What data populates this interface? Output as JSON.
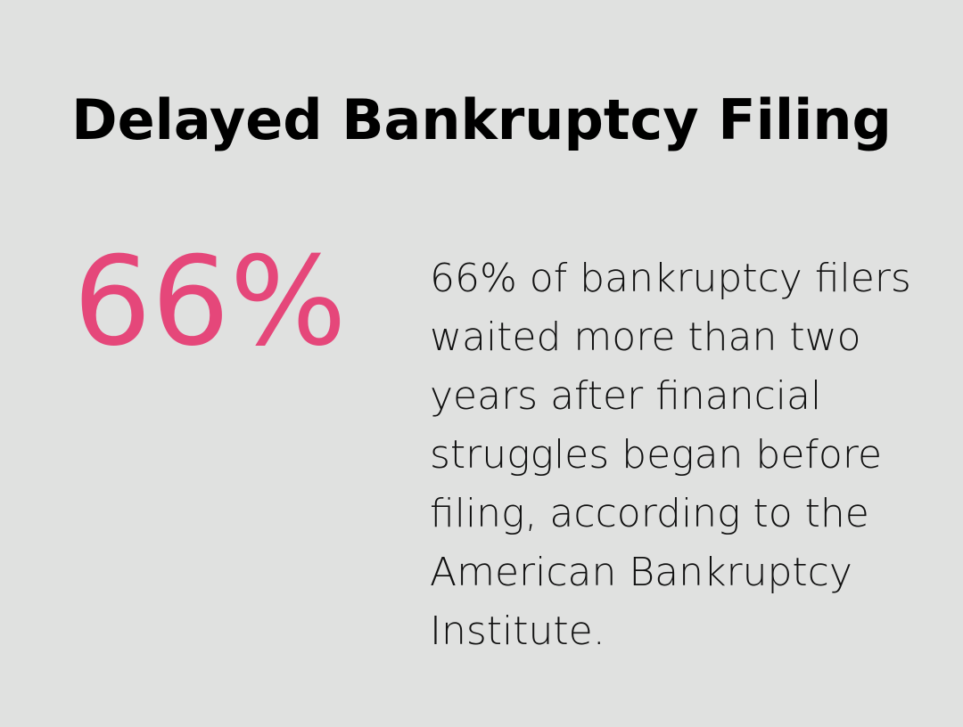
{
  "header": {
    "title": "Delayed Bankruptcy Filing"
  },
  "stat": {
    "value": "66%",
    "description": "66% of bankruptcy filers waited more than two years after financial struggles began before filing, according to the American Bankruptcy Institute."
  }
}
